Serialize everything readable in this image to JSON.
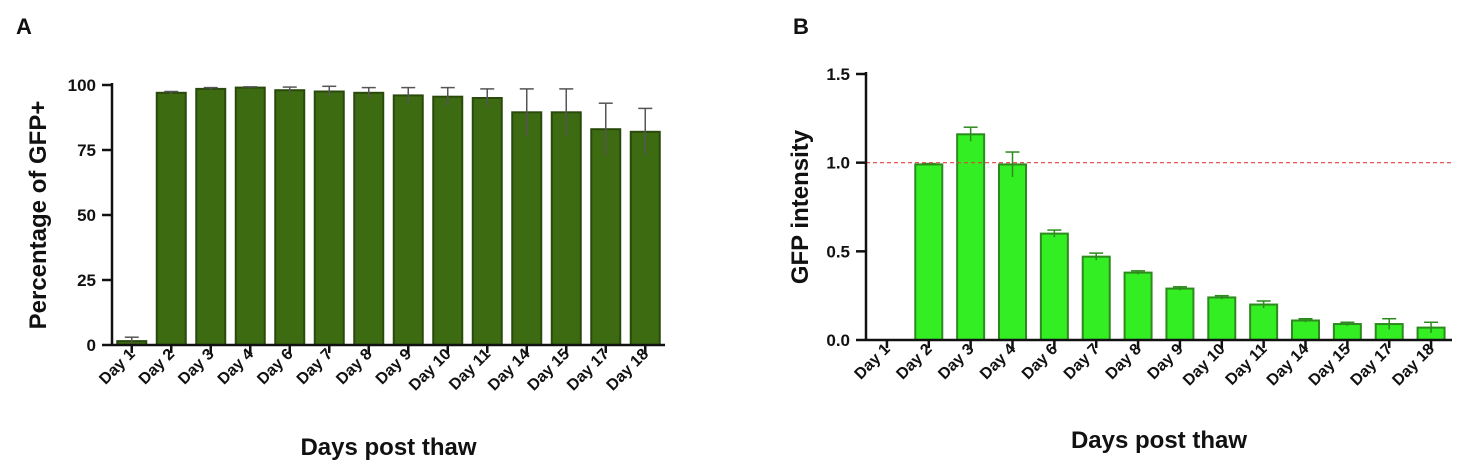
{
  "panels": [
    {
      "letter": "A",
      "chart_data": {
        "type": "bar",
        "title": "",
        "xlabel": "Days post thaw",
        "ylabel": "Percentage of GFP+",
        "ylim": [
          0,
          100
        ],
        "yticks": [
          "0",
          "25",
          "50",
          "75",
          "100"
        ],
        "ytick_values": [
          0,
          25,
          50,
          75,
          100
        ],
        "categories": [
          "Day 1",
          "Day 2",
          "Day 3",
          "Day 4",
          "Day 6",
          "Day 7",
          "Day 8",
          "Day 9",
          "Day 10",
          "Day 11",
          "Day 14",
          "Day 15",
          "Day 17",
          "Day 18"
        ],
        "values": [
          1.5,
          97,
          98.5,
          99,
          98,
          97.5,
          97,
          96,
          95.5,
          95,
          89.5,
          89.5,
          83,
          82
        ],
        "errors": [
          1.5,
          0.5,
          0.5,
          0.3,
          1.2,
          2,
          2,
          3,
          3.5,
          3.5,
          9,
          9,
          10,
          9
        ],
        "bar_color": "#3d6b12",
        "bar_edge_color": "#2a4a0c",
        "error_color": "#555555",
        "reference_line": null,
        "grid": false
      }
    },
    {
      "letter": "B",
      "chart_data": {
        "type": "bar",
        "title": "",
        "xlabel": "Days post thaw",
        "ylabel": "GFP intensity",
        "ylim": [
          0,
          1.5
        ],
        "yticks": [
          "0.0",
          "0.5",
          "1.0",
          "1.5"
        ],
        "ytick_values": [
          0,
          0.5,
          1.0,
          1.5
        ],
        "categories": [
          "Day 1",
          "Day 2",
          "Day 3",
          "Day 4",
          "Day 6",
          "Day 7",
          "Day 8",
          "Day 9",
          "Day 10",
          "Day 11",
          "Day 14",
          "Day 15",
          "Day 17",
          "Day 18"
        ],
        "values": [
          0.0,
          0.99,
          1.16,
          0.99,
          0.6,
          0.47,
          0.38,
          0.29,
          0.24,
          0.2,
          0.11,
          0.09,
          0.09,
          0.07
        ],
        "errors": [
          0.0,
          0.005,
          0.04,
          0.07,
          0.02,
          0.02,
          0.01,
          0.01,
          0.01,
          0.02,
          0.01,
          0.01,
          0.03,
          0.03
        ],
        "bar_color": "#33ee22",
        "bar_edge_color": "#2d8a1e",
        "error_color": "#2d8a1e",
        "reference_line": 1.0,
        "reference_line_color": "#e04040",
        "grid": false
      }
    }
  ]
}
